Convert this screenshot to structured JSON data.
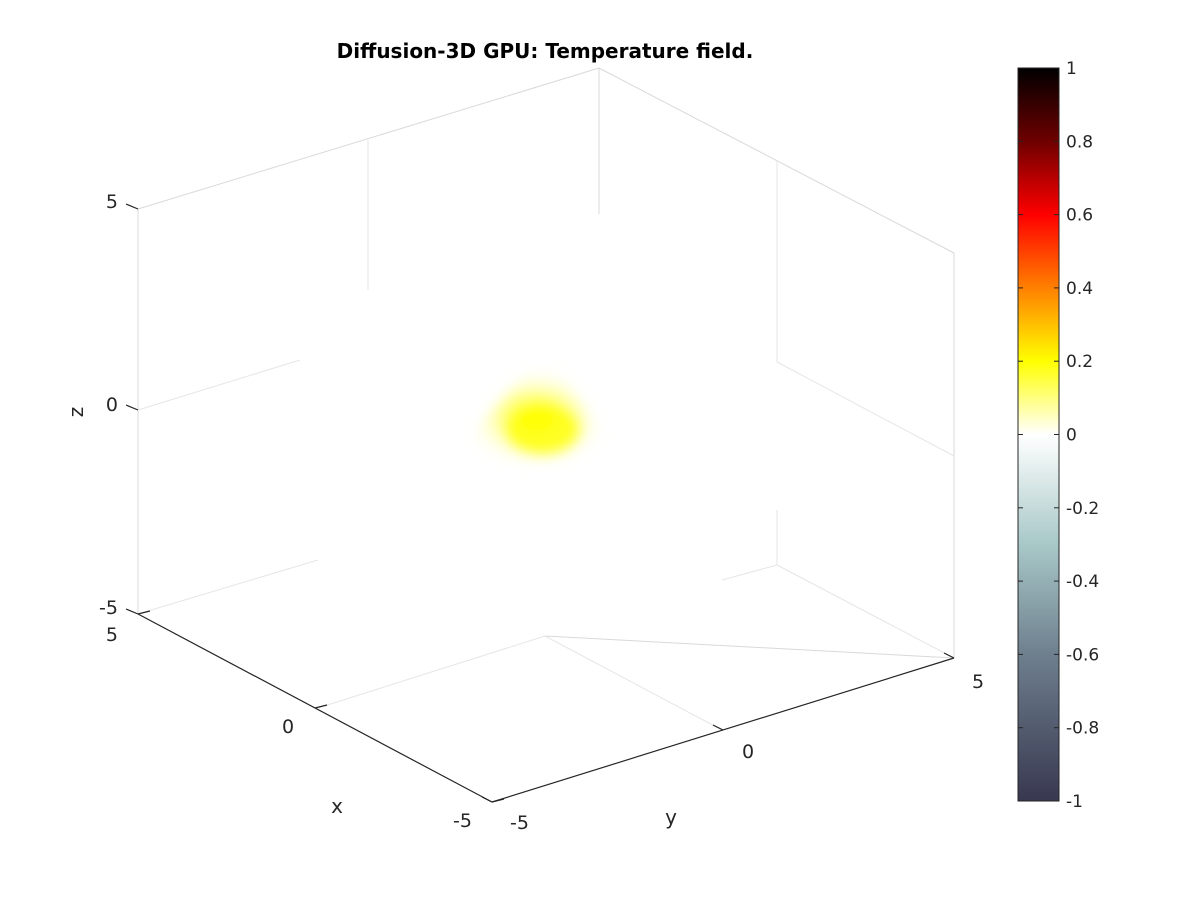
{
  "chart_data": {
    "type": "volume-slice-3d",
    "title": "Diffusion-3D GPU: Temperature field.",
    "xlabel": "x",
    "ylabel": "y",
    "zlabel": "z",
    "xlim": [
      -5,
      5
    ],
    "ylim": [
      -5,
      5
    ],
    "zlim": [
      -5,
      5
    ],
    "x_ticks": [
      "5",
      "0",
      "-5"
    ],
    "y_ticks": [
      "-5",
      "0",
      "5"
    ],
    "z_ticks": [
      "5",
      "0",
      "-5"
    ],
    "grid": false,
    "field": {
      "center": [
        0,
        0,
        0
      ],
      "peak_value": 0.25,
      "description_value_range": [
        0,
        0.25
      ]
    },
    "colorbar": {
      "range": [
        -1,
        1
      ],
      "ticks": [
        "1",
        "0.8",
        "0.6",
        "0.4",
        "0.2",
        "0",
        "-0.2",
        "-0.4",
        "-0.6",
        "-0.8",
        "-1"
      ],
      "colors": {
        "top": "#000000",
        "dark_red": "#6e0000",
        "red": "#ff0000",
        "orange": "#ff8000",
        "yellow": "#ffff00",
        "white": "#ffffff",
        "light_teal": "#a8c8c8",
        "slate": "#6e7f8e",
        "bottom": "#383850"
      }
    }
  }
}
